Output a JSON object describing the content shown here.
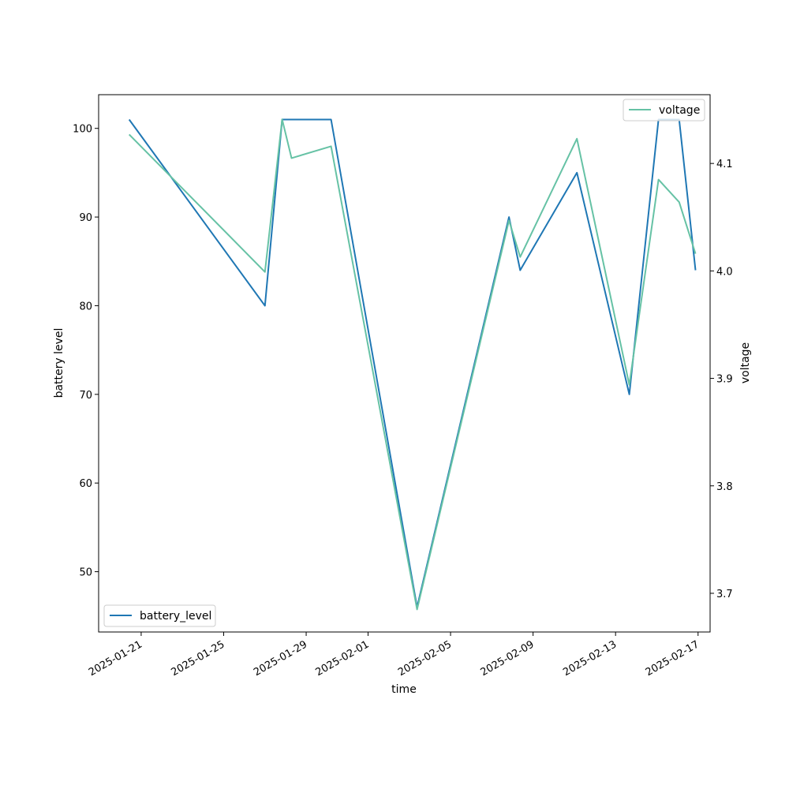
{
  "chart_data": {
    "type": "line",
    "xlabel": "time",
    "ylabel_left": "battery level",
    "ylabel_right": "voltage",
    "x_ticks": [
      "2025-01-21",
      "2025-01-25",
      "2025-01-29",
      "2025-02-01",
      "2025-02-05",
      "2025-02-09",
      "2025-02-13",
      "2025-02-17"
    ],
    "y_left_ticks": [
      50,
      60,
      70,
      80,
      90,
      100
    ],
    "y_right_ticks": [
      "3.7",
      "3.8",
      "3.9",
      "4.0",
      "4.1"
    ],
    "x_range": [
      "2025-01-18T22:30",
      "2025-02-17T14:00"
    ],
    "y_left_range": [
      43.2,
      103.8
    ],
    "y_right_range": [
      3.664,
      4.164
    ],
    "grid": false,
    "series": [
      {
        "name": "battery_level",
        "axis": "left",
        "color": "#1f77b4",
        "legend_position": "lower-left",
        "points": [
          [
            "2025-01-20T10:00",
            101
          ],
          [
            "2025-01-27T00:00",
            80
          ],
          [
            "2025-01-27T20:00",
            101
          ],
          [
            "2025-01-30T05:00",
            101
          ],
          [
            "2025-02-03T09:00",
            46
          ],
          [
            "2025-02-07T20:00",
            90
          ],
          [
            "2025-02-08T09:00",
            84
          ],
          [
            "2025-02-11T03:00",
            95
          ],
          [
            "2025-02-13T16:00",
            70
          ],
          [
            "2025-02-15T02:00",
            101
          ],
          [
            "2025-02-16T02:00",
            101
          ],
          [
            "2025-02-16T21:00",
            84
          ]
        ]
      },
      {
        "name": "voltage",
        "axis": "right",
        "color": "#66c2a5",
        "legend_position": "upper-right",
        "points": [
          [
            "2025-01-20T10:00",
            4.127
          ],
          [
            "2025-01-27T00:00",
            3.999
          ],
          [
            "2025-01-27T20:00",
            4.141
          ],
          [
            "2025-01-28T07:00",
            4.105
          ],
          [
            "2025-01-30T05:00",
            4.116
          ],
          [
            "2025-02-03T09:00",
            3.685
          ],
          [
            "2025-02-07T20:00",
            4.047
          ],
          [
            "2025-02-08T09:00",
            4.013
          ],
          [
            "2025-02-11T03:00",
            4.123
          ],
          [
            "2025-02-13T16:00",
            3.894
          ],
          [
            "2025-02-15T02:00",
            4.085
          ],
          [
            "2025-02-16T02:00",
            4.064
          ],
          [
            "2025-02-16T21:00",
            4.016
          ]
        ]
      }
    ]
  }
}
